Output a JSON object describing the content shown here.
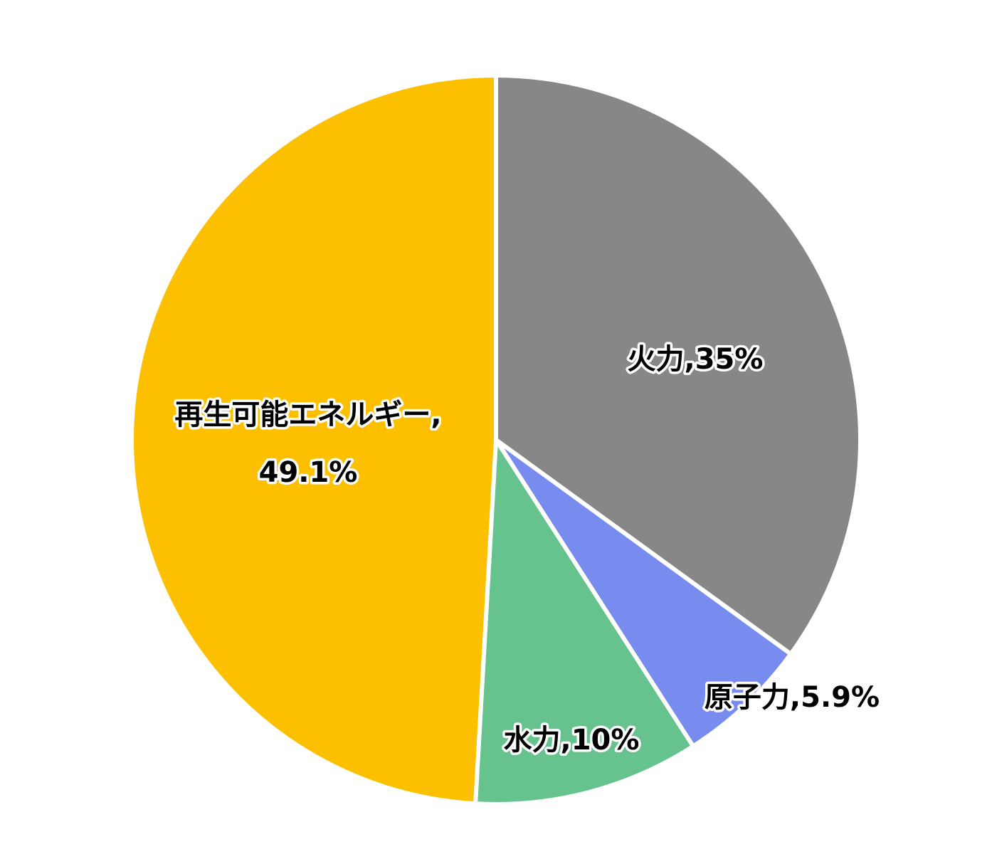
{
  "chart_data": {
    "type": "pie",
    "title": "",
    "categories": [
      "火力",
      "原子力",
      "水力",
      "再生可能エネルギー"
    ],
    "values": [
      35,
      5.9,
      10,
      49.1
    ],
    "unit": "%",
    "colors": [
      "#878787",
      "#788cf0",
      "#67c38d",
      "#fcc000"
    ],
    "labels": [
      "火力,35%",
      "原子力,5.9%",
      "水力,10%",
      "再生可能エネルギー,",
      "49.1%"
    ],
    "start_angle_deg": 0,
    "direction": "clockwise",
    "legend": "none"
  }
}
